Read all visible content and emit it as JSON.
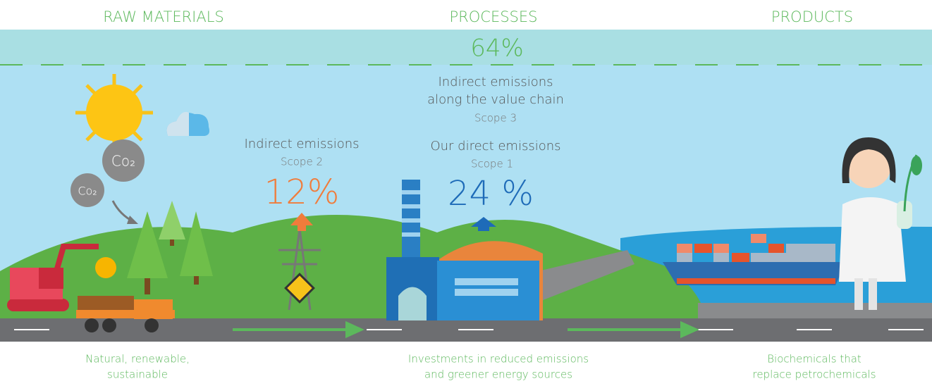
{
  "headers": [
    "RAW MATERIALS",
    "PROCESSES",
    "PRODUCTS"
  ],
  "total": "64%",
  "scope3": {
    "label_lines": [
      "Indirect emissions",
      "along the value chain"
    ],
    "scope": "Scope 3"
  },
  "scope2": {
    "label": "Indirect emissions",
    "scope": "Scope 2",
    "value": "12%"
  },
  "scope1": {
    "label": "Our direct emissions",
    "scope": "Scope 1",
    "value": "24 %"
  },
  "co2": [
    "Co₂",
    "Co₂"
  ],
  "captions": [
    [
      "Natural, renewable,",
      "sustainable"
    ],
    [
      "Investments in reduced emissions",
      "and greener energy sources"
    ],
    [
      "Biochemicals that",
      "replace petrochemicals"
    ]
  ]
}
